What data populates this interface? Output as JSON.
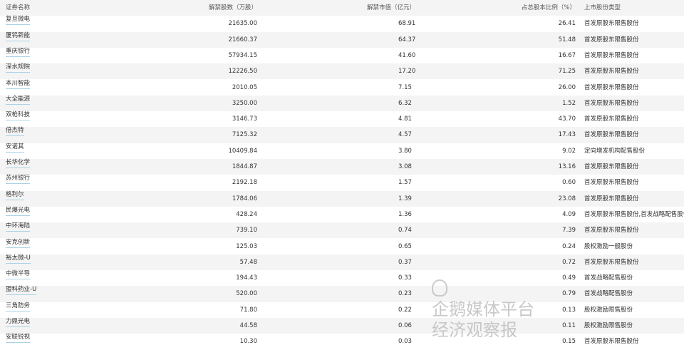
{
  "table": {
    "headers": {
      "name": "证券名称",
      "shares": "解禁股数（万股）",
      "value": "解禁市值（亿元）",
      "ratio": "占总股本比例（%）",
      "type": "上市股份类型"
    },
    "rows": [
      {
        "name": "复旦微电",
        "shares": "21635.00",
        "value": "68.91",
        "ratio": "26.41",
        "type": "首发原股东限售股份"
      },
      {
        "name": "厦钨新能",
        "shares": "21660.37",
        "value": "64.37",
        "ratio": "51.48",
        "type": "首发原股东限售股份"
      },
      {
        "name": "重庆银行",
        "shares": "57934.15",
        "value": "41.60",
        "ratio": "16.67",
        "type": "首发原股东限售股份"
      },
      {
        "name": "深水规院",
        "shares": "12226.50",
        "value": "17.20",
        "ratio": "71.25",
        "type": "首发原股东限售股份"
      },
      {
        "name": "本川智能",
        "shares": "2010.05",
        "value": "7.15",
        "ratio": "26.00",
        "type": "首发原股东限售股份"
      },
      {
        "name": "大全能源",
        "shares": "3250.00",
        "value": "6.32",
        "ratio": "1.52",
        "type": "首发原股东限售股份"
      },
      {
        "name": "双枪科技",
        "shares": "3146.73",
        "value": "4.81",
        "ratio": "43.70",
        "type": "首发原股东限售股份"
      },
      {
        "name": "倍杰特",
        "shares": "7125.32",
        "value": "4.57",
        "ratio": "17.43",
        "type": "首发原股东限售股份"
      },
      {
        "name": "安诺其",
        "shares": "10409.84",
        "value": "3.80",
        "ratio": "9.02",
        "type": "定向增发机构配售股份"
      },
      {
        "name": "长华化学",
        "shares": "1844.87",
        "value": "3.08",
        "ratio": "13.16",
        "type": "首发原股东限售股份"
      },
      {
        "name": "苏州银行",
        "shares": "2192.18",
        "value": "1.57",
        "ratio": "0.60",
        "type": "首发原股东限售股份"
      },
      {
        "name": "格利尔",
        "shares": "1784.06",
        "value": "1.39",
        "ratio": "23.08",
        "type": "首发原股东限售股份"
      },
      {
        "name": "民爆光电",
        "shares": "428.24",
        "value": "1.36",
        "ratio": "4.09",
        "type": "首发原股东限售股份,首发战略配售股份"
      },
      {
        "name": "中环海陆",
        "shares": "739.10",
        "value": "0.74",
        "ratio": "7.39",
        "type": "首发原股东限售股份"
      },
      {
        "name": "安克创新",
        "shares": "125.03",
        "value": "0.65",
        "ratio": "0.24",
        "type": "股权激励一般股份"
      },
      {
        "name": "裕太微-U",
        "shares": "57.48",
        "value": "0.37",
        "ratio": "0.72",
        "type": "首发原股东限售股份"
      },
      {
        "name": "中微半导",
        "shares": "194.43",
        "value": "0.33",
        "ratio": "0.49",
        "type": "首发战略配售股份"
      },
      {
        "name": "盟科药业-U",
        "shares": "520.00",
        "value": "0.23",
        "ratio": "0.79",
        "type": "首发战略配售股份"
      },
      {
        "name": "三角防务",
        "shares": "71.80",
        "value": "0.22",
        "ratio": "0.13",
        "type": "股权激励限售股份"
      },
      {
        "name": "力鼎光电",
        "shares": "44.58",
        "value": "0.06",
        "ratio": "0.11",
        "type": "股权激励限售股份"
      },
      {
        "name": "安联锐视",
        "shares": "10.30",
        "value": "0.03",
        "ratio": "0.15",
        "type": "首发原股东限售股份"
      }
    ]
  },
  "watermark": "企鹅媒体平台 经济观察报",
  "colors": {
    "row_alt": "#f4f4f4",
    "link_underline": "#a9d3e6"
  }
}
